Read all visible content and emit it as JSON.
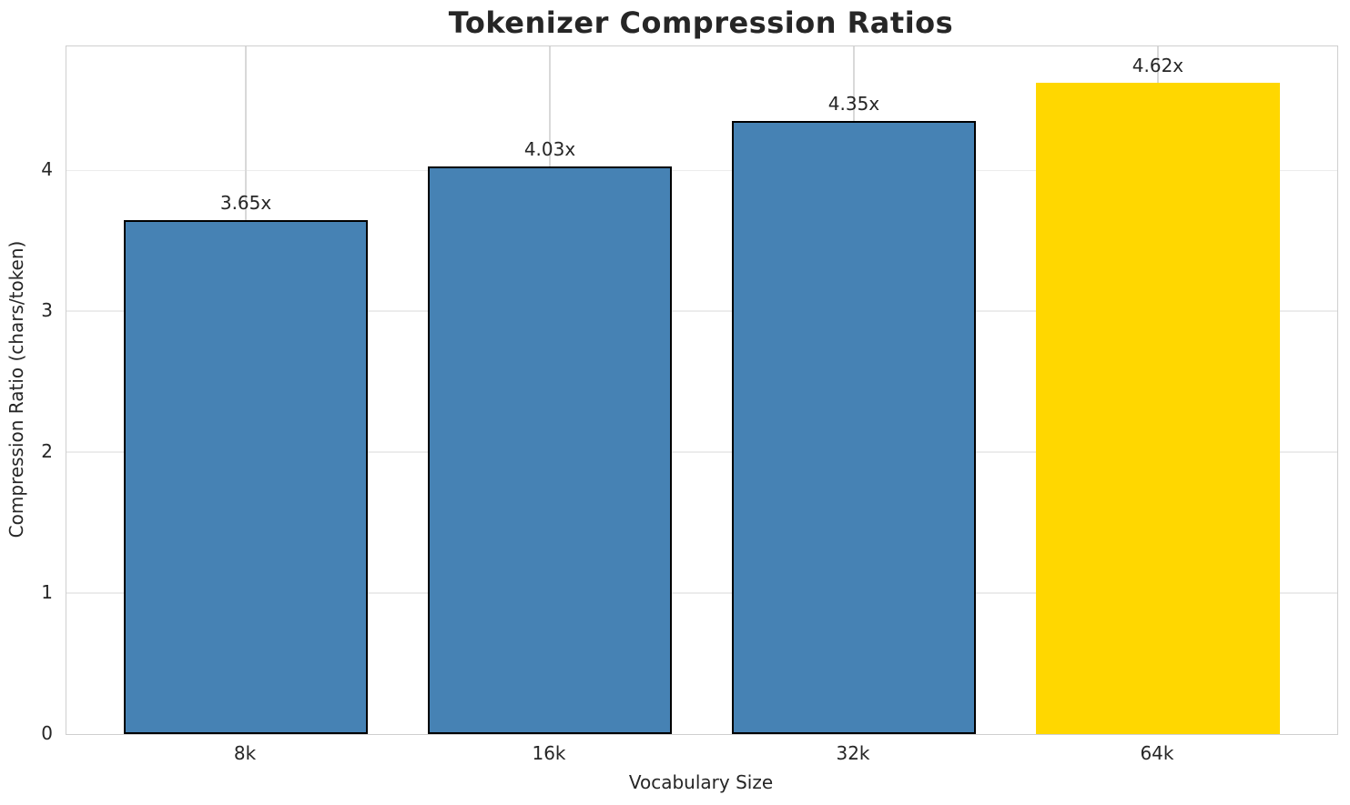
{
  "chart_data": {
    "type": "bar",
    "title": "Tokenizer Compression Ratios",
    "xlabel": "Vocabulary Size",
    "ylabel": "Compression Ratio (chars/token)",
    "categories": [
      "8k",
      "16k",
      "32k",
      "64k"
    ],
    "values": [
      3.65,
      4.03,
      4.35,
      4.62
    ],
    "value_labels": [
      "3.65x",
      "4.03x",
      "4.35x",
      "4.62x"
    ],
    "bar_colors": [
      "#4682B4",
      "#4682B4",
      "#4682B4",
      "#FFD700"
    ],
    "bar_edge_colors": [
      "#000000",
      "#000000",
      "#000000",
      "none"
    ],
    "highlight_index": 3,
    "ylim": [
      0,
      4.88
    ],
    "yticks": [
      0,
      1,
      2,
      3,
      4
    ],
    "xlim": [
      -0.59,
      3.59
    ],
    "bar_width_units": 0.8,
    "grid": true,
    "legend": "none",
    "plot_background": "#ffffff",
    "grid_color_vertical": "#d9d9d9",
    "grid_color_horizontal": "#ececec",
    "spine_color": "#cfcfcf",
    "text_color": "#262626"
  }
}
